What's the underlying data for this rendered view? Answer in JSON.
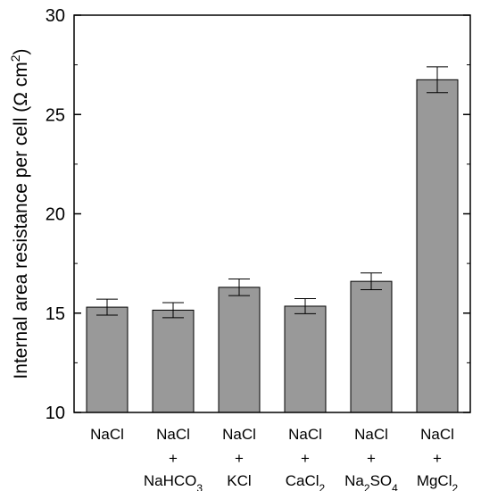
{
  "chart_data": {
    "type": "bar",
    "ylabel": "Internal area resistance per cell (Ω cm²)",
    "ylim": [
      10,
      30
    ],
    "yticks": [
      10,
      15,
      20,
      25,
      30
    ],
    "grid": false,
    "bar_color": "#999999",
    "categories": [
      {
        "lines": [
          "NaCl"
        ],
        "sub_line2": null
      },
      {
        "lines": [
          "NaCl",
          "+",
          "NaHCO3"
        ]
      },
      {
        "lines": [
          "NaCl",
          "+",
          "KCl"
        ]
      },
      {
        "lines": [
          "NaCl",
          "+",
          "CaCl2"
        ]
      },
      {
        "lines": [
          "NaCl",
          "+",
          "Na2SO4"
        ]
      },
      {
        "lines": [
          "NaCl",
          "+",
          "MgCl2"
        ]
      }
    ],
    "values": [
      15.3,
      15.15,
      16.3,
      15.35,
      16.6,
      26.75
    ],
    "errors": [
      0.4,
      0.38,
      0.42,
      0.38,
      0.42,
      0.65
    ]
  }
}
